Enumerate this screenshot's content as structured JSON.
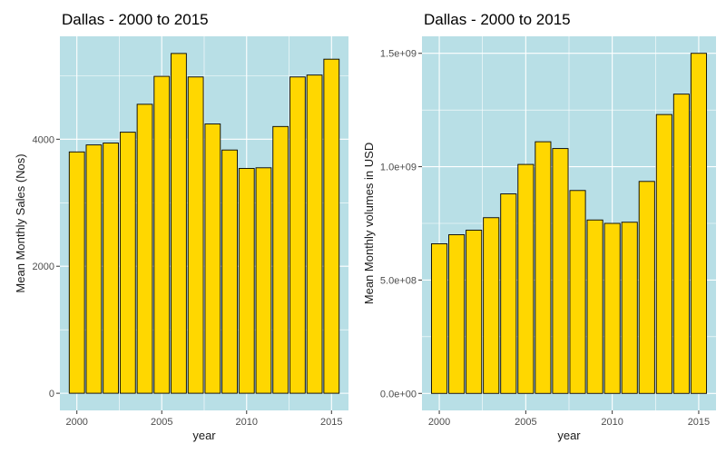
{
  "colors": {
    "panel_background": "#b8dfe6",
    "grid_line": "#ffffff",
    "bar_fill": "#ffd700",
    "bar_outline": "#000000"
  },
  "chart_data": [
    {
      "type": "bar",
      "title": "Dallas - 2000 to 2015",
      "xlabel": "year",
      "ylabel": "Mean Monthly Sales (Nos)",
      "x": [
        2000,
        2001,
        2002,
        2003,
        2004,
        2005,
        2006,
        2007,
        2008,
        2009,
        2010,
        2011,
        2012,
        2013,
        2014,
        2015
      ],
      "values": [
        3800,
        3910,
        3940,
        4110,
        4550,
        4990,
        5350,
        4980,
        4240,
        3830,
        3540,
        3550,
        4200,
        4980,
        5010,
        5260
      ],
      "xlim": [
        1999.0,
        2016.0
      ],
      "ylim": [
        -270,
        5620
      ],
      "x_ticks": [
        2000,
        2005,
        2010,
        2015
      ],
      "x_tick_labels": [
        "2000",
        "2005",
        "2010",
        "2015"
      ],
      "y_ticks": [
        0,
        2000,
        4000
      ],
      "y_tick_labels": [
        "0",
        "2000",
        "4000"
      ],
      "grid": true,
      "legend": "none"
    },
    {
      "type": "bar",
      "title": "Dallas - 2000 to 2015",
      "xlabel": "year",
      "ylabel": "Mean Monthly volumes in USD",
      "x": [
        2000,
        2001,
        2002,
        2003,
        2004,
        2005,
        2006,
        2007,
        2008,
        2009,
        2010,
        2011,
        2012,
        2013,
        2014,
        2015
      ],
      "values": [
        660000000,
        700000000,
        720000000,
        775000000,
        880000000,
        1010000000,
        1110000000,
        1080000000,
        895000000,
        765000000,
        750000000,
        755000000,
        935000000,
        1230000000,
        1320000000,
        1500000000
      ],
      "xlim": [
        1999.0,
        2016.0
      ],
      "ylim": [
        -75000000,
        1575000000
      ],
      "x_ticks": [
        2000,
        2005,
        2010,
        2015
      ],
      "x_tick_labels": [
        "2000",
        "2005",
        "2010",
        "2015"
      ],
      "y_ticks": [
        0,
        500000000,
        1000000000,
        1500000000
      ],
      "y_tick_labels": [
        "0.0e+00",
        "5.0e+08",
        "1.0e+09",
        "1.5e+09"
      ],
      "grid": true,
      "legend": "none"
    }
  ]
}
